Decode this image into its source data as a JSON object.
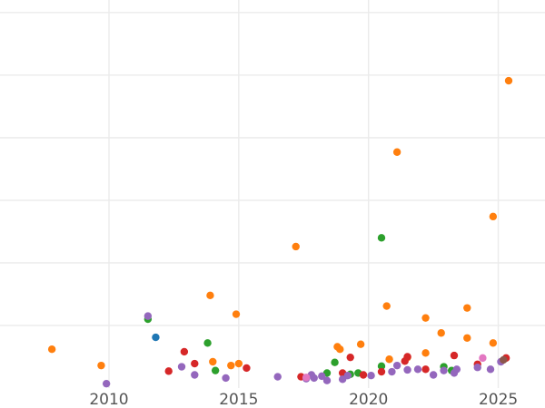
{
  "chart_data": {
    "type": "scatter",
    "title": "",
    "xlabel": "",
    "ylabel": "",
    "xlim": [
      2005.8,
      2026.8
    ],
    "ylim": [
      0,
      62
    ],
    "grid": true,
    "legend": "none",
    "x_ticks": [
      2010,
      2015,
      2020,
      2025
    ],
    "x_tick_labels": [
      "2010",
      "2015",
      "2020",
      "2025"
    ],
    "y_gridlines": [
      10,
      20,
      30,
      40,
      50,
      60
    ],
    "colors": {
      "orange": "#ff7f0e",
      "green": "#2ca02c",
      "red": "#d62728",
      "purple": "#9467bd",
      "blue": "#1f77b4",
      "pink": "#e377c2",
      "brown": "#8c564b"
    },
    "series": [
      {
        "color": "orange",
        "points": [
          [
            2007.8,
            6.2
          ],
          [
            2009.7,
            3.6
          ],
          [
            2014.0,
            4.2
          ],
          [
            2013.9,
            14.8
          ],
          [
            2014.7,
            3.6
          ],
          [
            2015.0,
            3.9
          ],
          [
            2014.9,
            11.8
          ],
          [
            2017.2,
            22.6
          ],
          [
            2018.8,
            6.6
          ],
          [
            2018.9,
            6.2
          ],
          [
            2019.7,
            7.0
          ],
          [
            2020.7,
            13.1
          ],
          [
            2020.8,
            4.6
          ],
          [
            2021.1,
            37.7
          ],
          [
            2021.5,
            4.9
          ],
          [
            2022.2,
            5.6
          ],
          [
            2022.2,
            11.2
          ],
          [
            2022.8,
            8.8
          ],
          [
            2023.8,
            12.8
          ],
          [
            2023.8,
            8.0
          ],
          [
            2024.8,
            27.4
          ],
          [
            2024.8,
            7.2
          ],
          [
            2025.4,
            49.1
          ]
        ]
      },
      {
        "color": "green",
        "points": [
          [
            2011.5,
            11.0
          ],
          [
            2013.8,
            7.2
          ],
          [
            2014.1,
            2.8
          ],
          [
            2018.4,
            2.4
          ],
          [
            2018.7,
            4.1
          ],
          [
            2019.3,
            2.2
          ],
          [
            2019.6,
            2.4
          ],
          [
            2020.5,
            3.5
          ],
          [
            2020.5,
            24.0
          ],
          [
            2022.9,
            3.4
          ],
          [
            2023.2,
            2.8
          ]
        ]
      },
      {
        "color": "red",
        "points": [
          [
            2012.3,
            2.7
          ],
          [
            2012.9,
            5.8
          ],
          [
            2013.3,
            3.9
          ],
          [
            2015.3,
            3.2
          ],
          [
            2017.4,
            1.8
          ],
          [
            2019.0,
            2.4
          ],
          [
            2019.3,
            4.9
          ],
          [
            2019.8,
            2.1
          ],
          [
            2020.5,
            2.6
          ],
          [
            2021.4,
            4.3
          ],
          [
            2021.5,
            5.0
          ],
          [
            2022.2,
            3.0
          ],
          [
            2023.3,
            5.2
          ],
          [
            2024.2,
            3.8
          ],
          [
            2025.3,
            4.8
          ]
        ]
      },
      {
        "color": "purple",
        "points": [
          [
            2009.9,
            0.7
          ],
          [
            2011.5,
            11.5
          ],
          [
            2012.8,
            3.4
          ],
          [
            2013.3,
            2.1
          ],
          [
            2014.5,
            1.6
          ],
          [
            2016.5,
            1.8
          ],
          [
            2017.6,
            1.5
          ],
          [
            2017.9,
            1.6
          ],
          [
            2018.4,
            1.2
          ],
          [
            2019.0,
            1.4
          ],
          [
            2019.2,
            2.0
          ],
          [
            2020.1,
            2.0
          ],
          [
            2020.9,
            2.6
          ],
          [
            2021.1,
            3.6
          ],
          [
            2021.5,
            2.9
          ],
          [
            2021.9,
            3.0
          ],
          [
            2022.5,
            2.1
          ],
          [
            2022.9,
            2.8
          ],
          [
            2023.3,
            2.4
          ],
          [
            2023.4,
            3.0
          ],
          [
            2024.2,
            3.3
          ],
          [
            2024.7,
            3.0
          ],
          [
            2025.1,
            4.2
          ],
          [
            2017.8,
            2.1
          ],
          [
            2018.2,
            1.9
          ]
        ]
      },
      {
        "color": "blue",
        "points": [
          [
            2011.8,
            8.1
          ]
        ]
      },
      {
        "color": "pink",
        "points": [
          [
            2017.6,
            1.7
          ],
          [
            2024.4,
            4.8
          ]
        ]
      },
      {
        "color": "brown",
        "points": [
          [
            2025.2,
            4.5
          ]
        ]
      }
    ]
  }
}
